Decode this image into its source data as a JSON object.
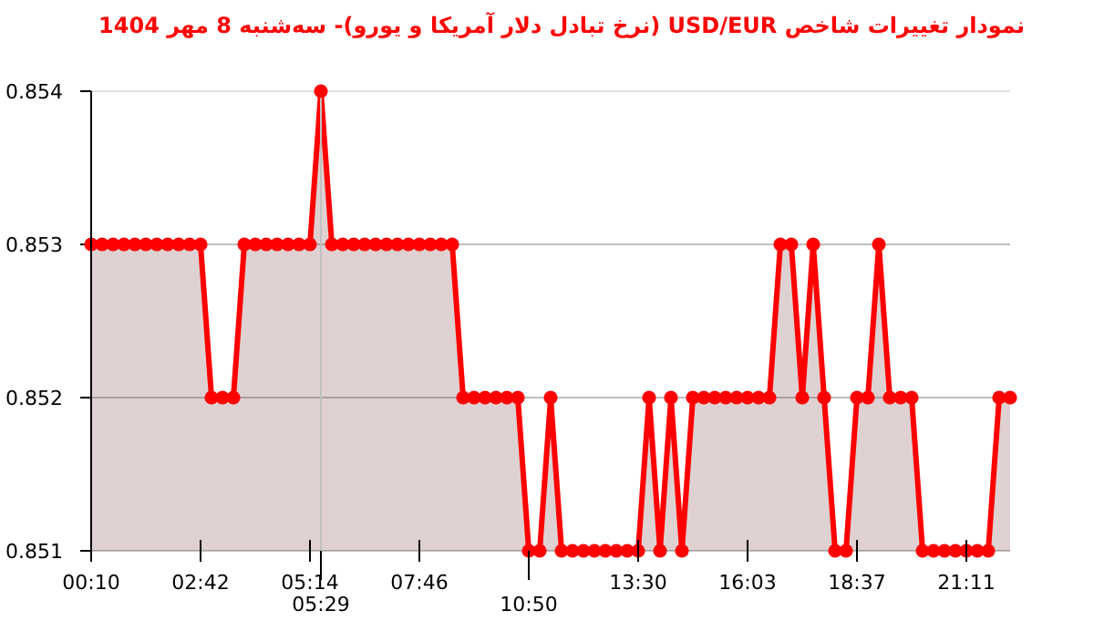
{
  "chart_data": {
    "type": "area",
    "title": "نمودار تغییرات شاخص USD/EUR (نرخ تبادل دلار آمریکا و یورو)- سه‌شنبه  8 مهر 1404",
    "categories": [
      "00:10",
      null,
      null,
      null,
      null,
      null,
      null,
      null,
      null,
      null,
      "02:42",
      null,
      null,
      null,
      null,
      null,
      null,
      null,
      null,
      null,
      "05:14",
      "05:29",
      null,
      null,
      null,
      null,
      null,
      null,
      null,
      null,
      "07:46",
      null,
      null,
      null,
      null,
      null,
      null,
      null,
      null,
      null,
      "10:50",
      null,
      null,
      null,
      null,
      null,
      null,
      null,
      null,
      null,
      "13:30",
      null,
      null,
      null,
      null,
      null,
      null,
      null,
      null,
      null,
      "16:03",
      null,
      null,
      null,
      null,
      null,
      null,
      null,
      null,
      null,
      "18:37",
      null,
      null,
      null,
      null,
      null,
      null,
      null,
      null,
      null,
      "21:11",
      null,
      null,
      null,
      null
    ],
    "values": [
      0.853,
      0.853,
      0.853,
      0.853,
      0.853,
      0.853,
      0.853,
      0.853,
      0.853,
      0.853,
      0.853,
      0.852,
      0.852,
      0.852,
      0.853,
      0.853,
      0.853,
      0.853,
      0.853,
      0.853,
      0.853,
      0.854,
      0.853,
      0.853,
      0.853,
      0.853,
      0.853,
      0.853,
      0.853,
      0.853,
      0.853,
      0.853,
      0.853,
      0.853,
      0.852,
      0.852,
      0.852,
      0.852,
      0.852,
      0.852,
      0.851,
      0.851,
      0.852,
      0.851,
      0.851,
      0.851,
      0.851,
      0.851,
      0.851,
      0.851,
      0.851,
      0.852,
      0.851,
      0.852,
      0.851,
      0.852,
      0.852,
      0.852,
      0.852,
      0.852,
      0.852,
      0.852,
      0.852,
      0.853,
      0.853,
      0.852,
      0.853,
      0.852,
      0.851,
      0.851,
      0.852,
      0.852,
      0.853,
      0.852,
      0.852,
      0.852,
      0.851,
      0.851,
      0.851,
      0.851,
      0.851,
      0.851,
      0.851,
      0.852,
      0.852
    ],
    "color": "#ff0000",
    "marker": "circle",
    "grid": "y",
    "ylim": [
      0.851,
      0.854
    ],
    "yticks": [
      0.851,
      0.852,
      0.853,
      0.854
    ],
    "ref_lines": [
      {
        "axis": "x",
        "value": "05:29",
        "color": "#c0c0c0"
      }
    ]
  }
}
